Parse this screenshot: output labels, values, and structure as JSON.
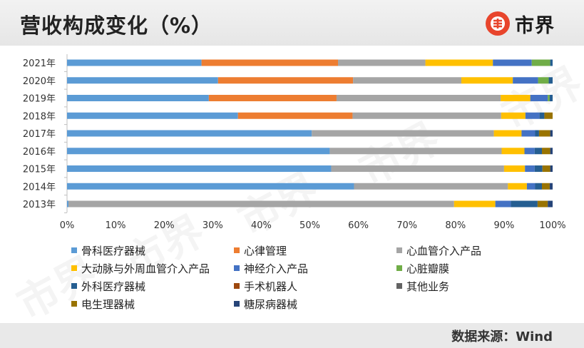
{
  "title": "营收构成变化（%）",
  "logo_text": "市界",
  "source": "数据来源：Wind",
  "watermark": "市界",
  "chart_data": {
    "type": "bar",
    "orientation": "horizontal",
    "stacked": true,
    "percent": true,
    "categories": [
      "2021年",
      "2020年",
      "2019年",
      "2018年",
      "2017年",
      "2016年",
      "2015年",
      "2014年",
      "2013年"
    ],
    "xticks": [
      "0%",
      "10%",
      "20%",
      "30%",
      "40%",
      "50%",
      "60%",
      "70%",
      "80%",
      "90%",
      "100%"
    ],
    "xlim": [
      0,
      100
    ],
    "grid": false,
    "legend_position": "bottom",
    "series": [
      {
        "name": "骨科医疗器械",
        "color": "#5b9bd5",
        "values": [
          27.7,
          31.1,
          29.2,
          35.2,
          50.4,
          54.1,
          54.4,
          59.1,
          0.3
        ]
      },
      {
        "name": "心律管理",
        "color": "#ed7d31",
        "values": [
          28.1,
          27.8,
          26.3,
          23.6,
          0,
          0,
          0,
          0,
          0
        ]
      },
      {
        "name": "心血管介入产品",
        "color": "#a5a5a5",
        "values": [
          18.0,
          22.3,
          33.8,
          30.6,
          37.5,
          35.4,
          35.6,
          31.7,
          79.4
        ]
      },
      {
        "name": "大动脉与外周血管介入产品",
        "color": "#ffc000",
        "values": [
          13.9,
          10.6,
          6.1,
          5.0,
          5.7,
          4.7,
          4.3,
          3.9,
          8.5
        ]
      },
      {
        "name": "神经介入产品",
        "color": "#4472c4",
        "values": [
          8.0,
          5.2,
          3.6,
          2.9,
          2.8,
          2.1,
          2.0,
          1.7,
          3.2
        ]
      },
      {
        "name": "心脏瓣膜",
        "color": "#70ad47",
        "values": [
          3.8,
          2.2,
          0.4,
          0,
          0,
          0,
          0,
          0,
          0
        ]
      },
      {
        "name": "外科医疗器械",
        "color": "#255e91",
        "values": [
          0.5,
          0.8,
          0.6,
          1.0,
          0.8,
          1.5,
          1.6,
          1.4,
          5.5
        ]
      },
      {
        "name": "手术机器人",
        "color": "#9e480e",
        "values": [
          0,
          0,
          0,
          0,
          0,
          0,
          0,
          0,
          0
        ]
      },
      {
        "name": "其他业务",
        "color": "#636363",
        "values": [
          0,
          0,
          0,
          0,
          0,
          0,
          0,
          0,
          0
        ]
      },
      {
        "name": "电生理器械",
        "color": "#997300",
        "values": [
          0,
          0,
          0,
          1.7,
          2.3,
          1.7,
          1.6,
          1.6,
          2.1
        ]
      },
      {
        "name": "糖尿病器械",
        "color": "#264478",
        "values": [
          0,
          0,
          0,
          0,
          0.5,
          0.5,
          0.5,
          0.6,
          1.0
        ]
      }
    ]
  }
}
